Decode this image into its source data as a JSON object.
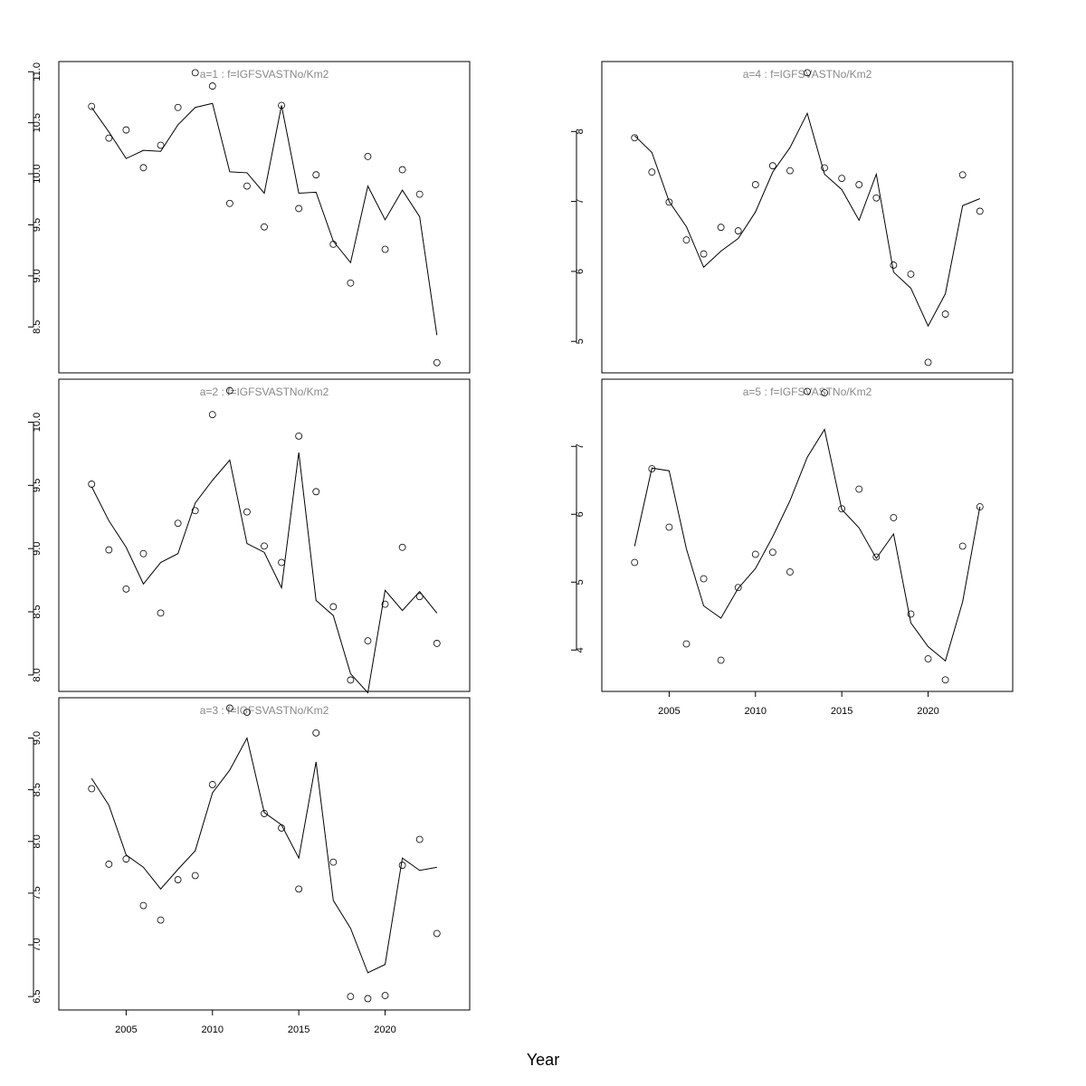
{
  "x_label": "Year",
  "chart_data": [
    {
      "type": "line",
      "title": "a=1  :  f=IGFSVASTNo/Km2",
      "x": [
        2003,
        2004,
        2005,
        2006,
        2007,
        2008,
        2009,
        2010,
        2011,
        2012,
        2013,
        2014,
        2015,
        2016,
        2017,
        2018,
        2019,
        2020,
        2021,
        2022,
        2023
      ],
      "xlim": [
        2001.1,
        2024.9
      ],
      "ylim": [
        8.05,
        11.1
      ],
      "yticks": [
        8.5,
        {
          "value": 9,
          "label": "9.0"
        },
        9.5,
        {
          "value": 10,
          "label": "10.0"
        },
        10.5,
        {
          "value": 11,
          "label": "11.0"
        }
      ],
      "series": [
        {
          "style": "points",
          "color": "#000000",
          "values": [
            10.66,
            10.35,
            10.43,
            10.06,
            10.28,
            10.65,
            10.99,
            10.86,
            9.71,
            9.88,
            9.48,
            10.67,
            9.66,
            9.99,
            9.31,
            8.93,
            10.17,
            9.26,
            10.04,
            9.8,
            8.15
          ]
        },
        {
          "style": "line",
          "color": "#000000",
          "values": [
            10.65,
            10.41,
            10.15,
            10.23,
            10.22,
            10.48,
            10.65,
            10.69,
            10.02,
            10.01,
            9.81,
            10.67,
            9.81,
            9.82,
            9.34,
            9.13,
            9.88,
            9.55,
            9.84,
            9.58,
            8.42
          ]
        }
      ]
    },
    {
      "type": "line",
      "title": "a=2  :  f=IGFSVASTNo/Km2",
      "x": [
        2003,
        2004,
        2005,
        2006,
        2007,
        2008,
        2009,
        2010,
        2011,
        2012,
        2013,
        2014,
        2015,
        2016,
        2017,
        2018,
        2019,
        2020,
        2021,
        2022,
        2023
      ],
      "xlim": [
        2001.1,
        2024.9
      ],
      "ylim": [
        7.87,
        10.34
      ],
      "yticks": [
        {
          "value": 8,
          "label": "8.0"
        },
        8.5,
        {
          "value": 9,
          "label": "9.0"
        },
        9.5,
        {
          "value": 10,
          "label": "10.0"
        }
      ],
      "series": [
        {
          "style": "points",
          "color": "#000000",
          "values": [
            9.51,
            8.99,
            8.68,
            8.96,
            8.49,
            9.2,
            9.3,
            10.06,
            10.25,
            9.29,
            9.02,
            8.89,
            9.89,
            9.45,
            8.54,
            7.96,
            8.27,
            8.56,
            9.01,
            8.62,
            8.25
          ]
        },
        {
          "style": "line",
          "color": "#000000",
          "values": [
            9.49,
            9.22,
            9.01,
            8.72,
            8.89,
            8.96,
            9.36,
            9.54,
            9.7,
            9.04,
            8.97,
            8.69,
            9.76,
            8.59,
            8.47,
            8.01,
            7.86,
            8.67,
            8.51,
            8.66,
            8.49
          ]
        }
      ]
    },
    {
      "type": "line",
      "title": "a=3  :  f=IGFSVASTNo/Km2",
      "x": [
        2003,
        2004,
        2005,
        2006,
        2007,
        2008,
        2009,
        2010,
        2011,
        2012,
        2013,
        2014,
        2015,
        2016,
        2017,
        2018,
        2019,
        2020,
        2021,
        2022,
        2023
      ],
      "xlim": [
        2001.1,
        2024.9
      ],
      "ylim": [
        6.37,
        9.39
      ],
      "xticks": [
        2005,
        2010,
        2015,
        2020
      ],
      "yticks": [
        6.5,
        {
          "value": 7,
          "label": "7.0"
        },
        7.5,
        {
          "value": 8,
          "label": "8.0"
        },
        8.5,
        {
          "value": 9,
          "label": "9.0"
        }
      ],
      "series": [
        {
          "style": "points",
          "color": "#000000",
          "values": [
            8.51,
            7.78,
            7.83,
            7.38,
            7.24,
            7.63,
            7.67,
            8.55,
            9.29,
            9.25,
            8.27,
            8.13,
            7.54,
            9.05,
            7.8,
            6.5,
            6.48,
            6.51,
            7.77,
            8.02,
            7.11
          ]
        },
        {
          "style": "line",
          "color": "#000000",
          "values": [
            8.61,
            8.35,
            7.87,
            7.75,
            7.54,
            7.73,
            7.91,
            8.47,
            8.69,
            9.0,
            8.28,
            8.16,
            7.84,
            8.77,
            7.43,
            7.16,
            6.73,
            6.81,
            7.84,
            7.72,
            7.75
          ]
        }
      ]
    },
    {
      "type": "line",
      "title": "a=4  :  f=IGFSVASTNo/Km2",
      "x": [
        2003,
        2004,
        2005,
        2006,
        2007,
        2008,
        2009,
        2010,
        2011,
        2012,
        2013,
        2014,
        2015,
        2016,
        2017,
        2018,
        2019,
        2020,
        2021,
        2022,
        2023
      ],
      "xlim": [
        2001.1,
        2024.9
      ],
      "ylim": [
        4.55,
        9.0
      ],
      "yticks": [
        5,
        6,
        7,
        8
      ],
      "series": [
        {
          "style": "points",
          "color": "#000000",
          "values": [
            7.91,
            7.42,
            6.99,
            6.45,
            6.25,
            6.63,
            6.58,
            7.24,
            7.51,
            7.44,
            8.84,
            7.48,
            7.33,
            7.24,
            7.05,
            6.09,
            5.96,
            4.7,
            5.39,
            7.38,
            6.86
          ]
        },
        {
          "style": "line",
          "color": "#000000",
          "values": [
            7.94,
            7.7,
            7.0,
            6.64,
            6.06,
            6.29,
            6.47,
            6.85,
            7.42,
            7.77,
            8.26,
            7.39,
            7.17,
            6.73,
            7.39,
            5.99,
            5.76,
            5.22,
            5.68,
            6.94,
            7.04
          ]
        }
      ]
    },
    {
      "type": "line",
      "title": "a=5  :  f=IGFSVASTNo/Km2",
      "x": [
        2003,
        2004,
        2005,
        2006,
        2007,
        2008,
        2009,
        2010,
        2011,
        2012,
        2013,
        2014,
        2015,
        2016,
        2017,
        2018,
        2019,
        2020,
        2021,
        2022,
        2023
      ],
      "xlim": [
        2001.1,
        2024.9
      ],
      "ylim": [
        3.39,
        7.99
      ],
      "xticks": [
        2005,
        2010,
        2015,
        2020
      ],
      "yticks": [
        4,
        5,
        6,
        7
      ],
      "series": [
        {
          "style": "points",
          "color": "#000000",
          "values": [
            5.29,
            6.67,
            5.81,
            4.09,
            5.05,
            3.85,
            4.92,
            5.41,
            5.44,
            5.15,
            7.81,
            7.79,
            6.08,
            6.37,
            5.37,
            5.95,
            4.53,
            3.87,
            3.56,
            5.53,
            6.11
          ]
        },
        {
          "style": "line",
          "color": "#000000",
          "values": [
            5.53,
            6.68,
            6.64,
            5.49,
            4.65,
            4.47,
            4.91,
            5.2,
            5.67,
            6.2,
            6.84,
            7.25,
            6.07,
            5.8,
            5.35,
            5.71,
            4.4,
            4.05,
            3.84,
            4.71,
            6.11
          ]
        }
      ]
    }
  ]
}
